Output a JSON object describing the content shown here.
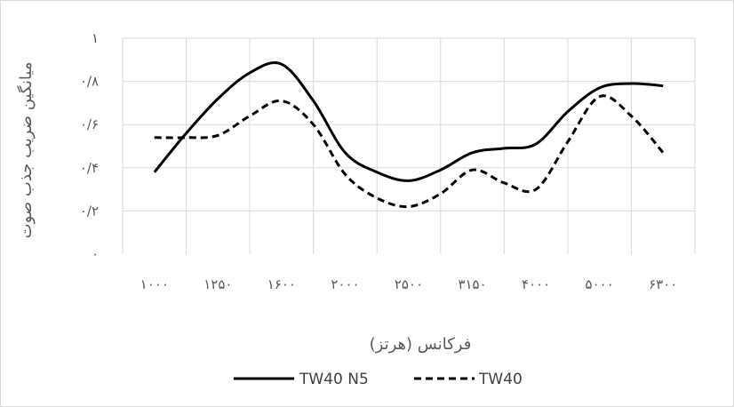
{
  "chart_data": {
    "type": "line",
    "categories": [
      "۱۰۰۰",
      "۱۲۵۰",
      "۱۶۰۰",
      "۲۰۰۰",
      "۲۵۰۰",
      "۳۱۵۰",
      "۴۰۰۰",
      "۵۰۰۰",
      "۶۳۰۰"
    ],
    "x": [
      0,
      1,
      2,
      3,
      4,
      5,
      6,
      7,
      8
    ],
    "series": [
      {
        "name": "TW40 N5",
        "x": [
          0,
          0.5,
          1,
          1.5,
          2,
          2.5,
          3,
          3.5,
          4,
          4.5,
          5,
          5.5,
          6,
          6.5,
          7,
          7.5,
          8
        ],
        "values": [
          0.38,
          0.56,
          0.72,
          0.84,
          0.88,
          0.71,
          0.47,
          0.38,
          0.34,
          0.39,
          0.47,
          0.49,
          0.51,
          0.66,
          0.77,
          0.79,
          0.78
        ],
        "color": "#000000",
        "dash": "solid"
      },
      {
        "name": "TW40",
        "x": [
          0,
          0.5,
          1,
          1.5,
          2,
          2.5,
          3,
          3.5,
          4,
          4.5,
          5,
          5.5,
          6,
          6.5,
          7,
          7.5,
          8
        ],
        "values": [
          0.54,
          0.54,
          0.55,
          0.64,
          0.71,
          0.6,
          0.37,
          0.26,
          0.22,
          0.28,
          0.39,
          0.33,
          0.3,
          0.52,
          0.73,
          0.64,
          0.47
        ],
        "color": "#000000",
        "dash": "dashed"
      }
    ],
    "y_ticks": [
      {
        "value": 0,
        "label": "۰"
      },
      {
        "value": 0.2,
        "label": "۰/۲"
      },
      {
        "value": 0.4,
        "label": "۰/۴"
      },
      {
        "value": 0.6,
        "label": "۰/۶"
      },
      {
        "value": 0.8,
        "label": "۰/۸"
      },
      {
        "value": 1,
        "label": "۱"
      }
    ],
    "ylim": [
      0,
      1
    ],
    "xlabel": "فرکانس (هرتز)",
    "ylabel": "میانگین ضریب جذب صوت",
    "title": "",
    "grid": true,
    "legend_position": "bottom"
  }
}
